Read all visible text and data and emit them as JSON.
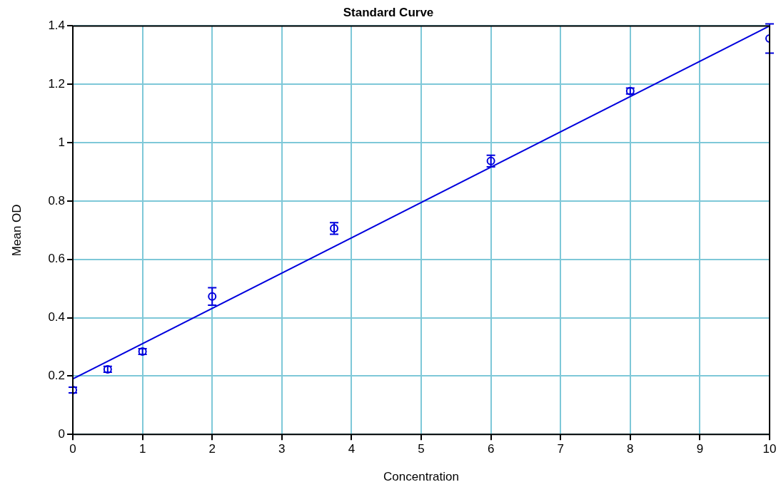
{
  "chart_data": {
    "type": "scatter",
    "title": "Standard Curve",
    "xlabel": "Concentration",
    "ylabel": "Mean OD",
    "xlim": [
      0,
      10
    ],
    "xticks": [
      0,
      1,
      2,
      3,
      4,
      5,
      6,
      7,
      8,
      9,
      10
    ],
    "ylim": [
      0,
      1.4
    ],
    "yticks": [
      0,
      0.2,
      0.4,
      0.6,
      0.8,
      1,
      1.2,
      1.4
    ],
    "grid": true,
    "legend": false,
    "marker": "circle",
    "series": [
      {
        "type": "scatter",
        "color": "#0000dd",
        "x": [
          0,
          0.5,
          1,
          2,
          3.75,
          6,
          8,
          10
        ],
        "values": [
          0.152,
          0.223,
          0.284,
          0.473,
          0.706,
          0.937,
          1.177,
          1.357
        ],
        "errors": [
          0.01,
          0.01,
          0.01,
          0.03,
          0.02,
          0.02,
          0.01,
          0.05
        ]
      },
      {
        "type": "line",
        "color": "#0000dd",
        "marker": "none",
        "x": [
          0,
          10
        ],
        "values": [
          0.19,
          1.4
        ]
      }
    ]
  }
}
